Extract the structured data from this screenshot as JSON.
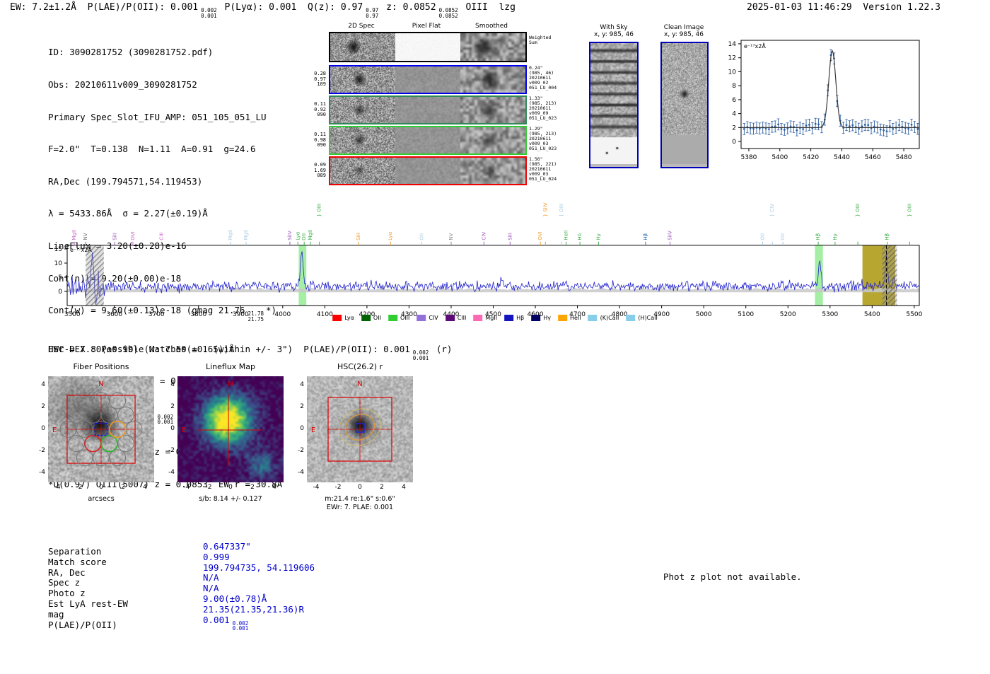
{
  "header": {
    "ew": "EW: 7.2±1.2Å  ",
    "plae": "P(LAE)/P(OII): 0.001",
    "plae_sup": "0.002",
    "plae_sub": "0.001",
    "plya": " P(Lyα): 0.001  ",
    "qz": "Q(z): 0.97",
    "qz_sup": "0.97",
    "qz_sub": "0.97",
    "z": " z: 0.0852",
    "z_sup": "0.0852",
    "z_sub": "0.0852",
    "line_id": " OIII  lzg",
    "timestamp": "2025-01-03 11:46:29  Version 1.22.3"
  },
  "info": {
    "line1": "ID: 3090281752 (3090281752.pdf)",
    "line2": "Obs: 20210611v009_3090281752",
    "line3": "Primary Spec_Slot_IFU_AMP: 051_105_051_LU",
    "line4": "F=2.0\"  T=0.138  N=1.11  A=0.91  g=24.6",
    "line5": "RA,Dec (199.794571,54.119453)",
    "line6": "λ = 5433.86Å  σ = 2.27(±0.19)Å",
    "line7": "LineFlux = 3.20(±0.28)e-16",
    "line8": "Cont(n) = 9.20(±0.00)e-18",
    "line9_pre": "Cont(w) = 9.60(±0.13)e-18 (gmag 21.76",
    "line9_sup": "21.78",
    "line9_sub": "21.75",
    "line9_post": "*)",
    "line10": "EWr = 7.80(±0.99) (w: 7.50(±0.65))Å",
    "line11": "S/N = 15.1(±1.3)  χ² = 0.9(±0.0)",
    "line12_pre": "P(LAE)/P(OII): 0.001",
    "line12_sup": "0.002",
    "line12_sub": "0.001",
    "line13": "LyA z = 3.4699  OII z = 0.4577",
    "line14": "*Q(0.97) OIII(5007) z = 0.0853  EW r = 30.8Å"
  },
  "spec2d": {
    "col_headers": [
      "2D Spec",
      "Pixel Flat",
      "Smoothed"
    ],
    "weighted_label_1": "Weighted",
    "weighted_label_2": "Sum",
    "rows": [
      {
        "color": "#0000ee",
        "left": [
          "0.28",
          "0.97",
          "109"
        ],
        "right": [
          "0.24\"",
          "(985, 46)",
          "20210611",
          "v009_02",
          "051_LU_004"
        ]
      },
      {
        "color": "#2e8b57",
        "left": [
          "0.11",
          "0.92",
          "090"
        ],
        "right": [
          "1.33\"",
          "(985, 213)",
          "20210611",
          "v009_09",
          "051_LU_023"
        ]
      },
      {
        "color": "#32cd32",
        "left": [
          "0.11",
          "0.98",
          "090"
        ],
        "right": [
          "1.29\"",
          "(985, 213)",
          "20210611",
          "v009_03",
          "051_LU_023"
        ]
      },
      {
        "color": "#ee0000",
        "left": [
          "0.09",
          "1.69",
          "089"
        ],
        "right": [
          "1.56\"",
          "(985, 221)",
          "20210611",
          "v009_03",
          "051_LU_024"
        ]
      }
    ]
  },
  "panels": {
    "withsky_title": "With Sky",
    "withsky_xy": "x, y: 985, 46",
    "clean_title": "Clean Image",
    "clean_xy": "x, y: 985, 46"
  },
  "hscdex": {
    "pre": "HSC-DEX : Possible Matches = 1 (within +/- 3\")  P(LAE)/P(OII): 0.001",
    "sup": "0.002",
    "sub": "0.001",
    "post": " (r)"
  },
  "cutouts": {
    "titles": [
      "Fiber Positions",
      "Lineflux Map",
      "HSC(26.2) r"
    ],
    "ticks": [
      -4,
      -2,
      0,
      2,
      4
    ],
    "xlabel1": "arcsecs",
    "caption2": "s/b: 8.14 +/- 0.127",
    "caption3a": "m:21.4 re:1.6\" s:0.6\"",
    "caption3b": "EWr: 7. PLAE: 0.001",
    "compass_n": "N",
    "compass_e": "E"
  },
  "match_table": {
    "rows": [
      {
        "label": "Separation",
        "value": "0.647337\""
      },
      {
        "label": "Match score",
        "value": "0.999"
      },
      {
        "label": "RA, Dec",
        "value": "199.794735, 54.119606"
      },
      {
        "label": "Spec z",
        "value": "N/A"
      },
      {
        "label": "Photo z",
        "value": "N/A"
      },
      {
        "label": "Est LyA rest-EW",
        "value": "9.00(±0.78)Å"
      },
      {
        "label": "mag",
        "value": "21.35(21.35,21.36)R"
      },
      {
        "label": "P(LAE)/P(OII)",
        "value": "0.001",
        "sup": "0.002",
        "sub": "0.001"
      }
    ]
  },
  "photz_note": "Phot z plot not available.",
  "colors": {
    "value_blue": "#0000cd",
    "frame_blue": "#0000bb",
    "marker_red": "#dd0000"
  },
  "chart_data": [
    {
      "type": "line",
      "annotation": "e⁻¹⁷x2Å",
      "xlim": [
        5375,
        5490
      ],
      "ylim": [
        -1,
        14.5
      ],
      "xticks": [
        5380,
        5400,
        5420,
        5440,
        5460,
        5480
      ],
      "yticks": [
        0,
        2,
        4,
        6,
        8,
        10,
        12,
        14
      ],
      "seed": 7,
      "series": [
        {
          "name": "observed",
          "style": "points+errorbars",
          "color": "#2e5fa3",
          "continuum": 2.0,
          "noise_sigma": 0.45,
          "errorbar": 0.8,
          "step": 2
        },
        {
          "name": "gaussian_fit",
          "style": "line",
          "color": "#3a3a3a",
          "model": {
            "continuum": 2.0,
            "center": 5433.86,
            "sigma": 2.27,
            "amplitude": 11.0
          }
        }
      ]
    },
    {
      "type": "line",
      "annotation": "e⁻¹⁷x2Å",
      "xlim": [
        3488,
        5512
      ],
      "ylim": [
        -5,
        16.3
      ],
      "xticks": [
        3500,
        3600,
        3700,
        3800,
        3900,
        4000,
        4100,
        4200,
        4300,
        4400,
        4500,
        4600,
        4700,
        4800,
        4900,
        5000,
        5100,
        5200,
        5300,
        5400,
        5500
      ],
      "yticks": [
        0,
        5,
        10,
        15
      ],
      "seed": 11,
      "series": [
        {
          "name": "spectrum",
          "color": "#2222cc",
          "continuum": 1.8,
          "noise_sigma": 1.0,
          "step": 2,
          "peaks": [
            {
              "center": 3548,
              "amplitude": 12.0,
              "sigma": 2.5
            },
            {
              "center": 3556,
              "amplitude": -7.0,
              "sigma": 2.0
            },
            {
              "center": 4045,
              "amplitude": 13.0,
              "sigma": 3.0
            },
            {
              "center": 4520,
              "amplitude": 2.5,
              "sigma": 2.0
            },
            {
              "center": 4960,
              "amplitude": 2.2,
              "sigma": 2.0
            },
            {
              "center": 5275,
              "amplitude": 9.5,
              "sigma": 3.0
            },
            {
              "center": 5433.9,
              "amplitude": 11.5,
              "sigma": 2.4
            },
            {
              "center": 5452,
              "amplitude": 3.2,
              "sigma": 2.0
            }
          ]
        },
        {
          "name": "error_band",
          "color": "#c8c8c8",
          "level": 0.8,
          "noise_sigma": 0.35
        }
      ],
      "bands": [
        {
          "x0": 3532,
          "x1": 3575,
          "style": "hatched"
        },
        {
          "x0": 4038,
          "x1": 4056,
          "style": "green"
        },
        {
          "x0": 5264,
          "x1": 5283,
          "style": "green"
        },
        {
          "x0": 5377,
          "x1": 5455,
          "style": "olive"
        },
        {
          "x0": 5424,
          "x1": 5459,
          "style": "hatched"
        }
      ],
      "marker": {
        "wl": 5433.9,
        "style": "dashed"
      },
      "line_labels": [
        {
          "wl": 3505,
          "label": "MgII",
          "color": "#c869c8",
          "level": 0
        },
        {
          "wl": 3532,
          "label": "NV",
          "color": "#6e6e6e",
          "level": 0
        },
        {
          "wl": 3601,
          "label": "SiII",
          "color": "#9b59b6",
          "level": 0
        },
        {
          "wl": 3644,
          "label": "OVI",
          "color": "#c869c8",
          "level": 0
        },
        {
          "wl": 3712,
          "label": "CIII",
          "color": "#c869c8",
          "level": 0
        },
        {
          "wl": 3876,
          "label": "MgII",
          "color": "#a9cce3",
          "level": 0
        },
        {
          "wl": 3913,
          "label": "MgII",
          "color": "#a9cce3",
          "level": 0
        },
        {
          "wl": 4017,
          "label": "SiIV",
          "color": "#9b59b6",
          "level": 0
        },
        {
          "wl": 4036,
          "label": "Lyα",
          "color": "#3fae49",
          "level": 0
        },
        {
          "wl": 4051,
          "label": "OII",
          "color": "#3fae49",
          "level": 0
        },
        {
          "wl": 4066,
          "label": "MgII",
          "color": "#3fae49",
          "level": 0
        },
        {
          "wl": 4087,
          "label": "} OIII",
          "color": "#3fae49",
          "level": 1
        },
        {
          "wl": 4180,
          "label": "SiII",
          "color": "#f0a030",
          "level": 0
        },
        {
          "wl": 4256,
          "label": "Lyα",
          "color": "#f0a030",
          "level": 0
        },
        {
          "wl": 4330,
          "label": "OII",
          "color": "#a9cce3",
          "level": 0
        },
        {
          "wl": 4400,
          "label": "NV",
          "color": "#8a8a8a",
          "level": 0
        },
        {
          "wl": 4478,
          "label": "CIV",
          "color": "#9b59b6",
          "level": 0
        },
        {
          "wl": 4540,
          "label": "SiII",
          "color": "#9b59b6",
          "level": 0
        },
        {
          "wl": 4612,
          "label": "OVI",
          "color": "#f0a030",
          "level": 0
        },
        {
          "wl": 4624,
          "label": "} SiIV",
          "color": "#f0a030",
          "level": 1
        },
        {
          "wl": 4662,
          "label": "} OIII",
          "color": "#a9cce3",
          "level": 1
        },
        {
          "wl": 4673,
          "label": "HeII",
          "color": "#3fae49",
          "level": 0
        },
        {
          "wl": 4706,
          "label": "Hδ",
          "color": "#3fae49",
          "level": 0
        },
        {
          "wl": 4750,
          "label": "Hγ",
          "color": "#3fae49",
          "level": 0
        },
        {
          "wl": 4862,
          "label": "Hβ",
          "color": "#2d6cb5",
          "level": 0
        },
        {
          "wl": 4920,
          "label": "SiIV",
          "color": "#9b59b6",
          "level": 0
        },
        {
          "wl": 5140,
          "label": "OII",
          "color": "#a9cce3",
          "level": 0
        },
        {
          "wl": 5163,
          "label": "} CIV",
          "color": "#a9cce3",
          "level": 1
        },
        {
          "wl": 5188,
          "label": "OII",
          "color": "#a9cce3",
          "level": 0
        },
        {
          "wl": 5272,
          "label": "Hβ",
          "color": "#3fae49",
          "level": 0
        },
        {
          "wl": 5312,
          "label": "Hγ",
          "color": "#3fae49",
          "level": 0
        },
        {
          "wl": 5366,
          "label": "} OIII",
          "color": "#3fae49",
          "level": 1
        },
        {
          "wl": 5436,
          "label": "Hβ",
          "color": "#3fae49",
          "level": 0
        },
        {
          "wl": 5489,
          "label": "} OIII",
          "color": "#3fae49",
          "level": 1
        }
      ],
      "legend": [
        {
          "label": "Lyα",
          "color": "#ff0000"
        },
        {
          "label": "OII",
          "color": "#006400"
        },
        {
          "label": "OIII",
          "color": "#32cd32"
        },
        {
          "label": "CIV",
          "color": "#9370db"
        },
        {
          "label": "CIII",
          "color": "#5c0a78"
        },
        {
          "label": "MgII",
          "color": "#ff69b4"
        },
        {
          "label": "Hβ",
          "color": "#1515c0"
        },
        {
          "label": "Hγ",
          "color": "#000060"
        },
        {
          "label": "HeII",
          "color": "#ffa500"
        },
        {
          "label": "(K)CaII",
          "color": "#87ceeb"
        },
        {
          "label": "(H)CaII",
          "color": "#87ceeb"
        }
      ]
    }
  ]
}
